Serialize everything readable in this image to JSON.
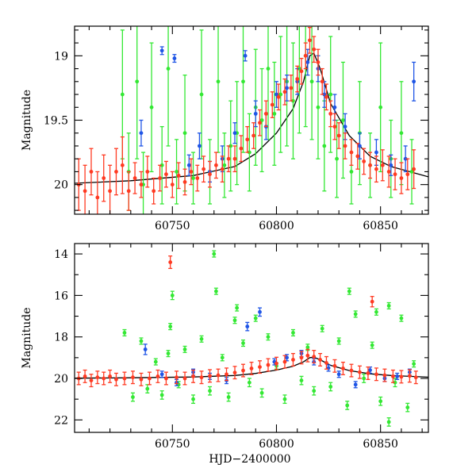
{
  "figure": {
    "xlabel": "HJD−2400000",
    "colors": {
      "red": "#ff3a22",
      "green": "#33e833",
      "blue": "#1f55e6",
      "model": "#000000"
    }
  },
  "chart_data": [
    {
      "type": "scatter",
      "panel": "top",
      "ylabel": "Magnitude",
      "xlim": [
        60703,
        60873
      ],
      "ylim": [
        20.23,
        18.77
      ],
      "y_inverted": true,
      "x_ticks": [
        60750,
        60800,
        60850
      ],
      "y_ticks": [
        19,
        19.5,
        20
      ],
      "y_tick_labels": [
        "19",
        "19.5",
        "20"
      ],
      "model_curve": {
        "x": [
          60703,
          60730,
          60760,
          60780,
          60790,
          60800,
          60808,
          60813,
          60816,
          60818,
          60821,
          60826,
          60835,
          60845,
          60855,
          60873
        ],
        "y": [
          19.99,
          19.97,
          19.93,
          19.86,
          19.76,
          19.6,
          19.41,
          19.2,
          19.0,
          18.98,
          19.1,
          19.37,
          19.62,
          19.78,
          19.86,
          19.94
        ]
      },
      "series": [
        {
          "color": "green",
          "x": [
            60726,
            60729,
            60733,
            60736,
            60740,
            60745,
            60748,
            60752,
            60756,
            60760,
            60764,
            60768,
            60772,
            60775,
            60778,
            60781,
            60784,
            60787,
            60790,
            60793,
            60796,
            60799,
            60802,
            60805,
            60808,
            60811,
            60814,
            60817,
            60820,
            60823,
            60826,
            60829,
            60832,
            60836,
            60840,
            60845,
            60850,
            60855,
            60860,
            60865
          ],
          "y": [
            19.3,
            19.9,
            19.2,
            20.0,
            19.4,
            19.85,
            19.1,
            19.9,
            19.6,
            19.95,
            19.3,
            19.9,
            19.2,
            19.85,
            19.7,
            19.6,
            19.2,
            19.75,
            19.4,
            19.5,
            19.1,
            19.45,
            19.3,
            19.2,
            19.35,
            19.1,
            19.0,
            19.2,
            19.4,
            19.7,
            19.3,
            19.8,
            19.5,
            19.9,
            19.6,
            19.85,
            19.4,
            19.8,
            19.6,
            19.9
          ],
          "yerr": [
            0.5,
            0.3,
            0.6,
            0.25,
            0.5,
            0.3,
            0.6,
            0.25,
            0.45,
            0.2,
            0.5,
            0.25,
            0.55,
            0.25,
            0.35,
            0.4,
            0.55,
            0.3,
            0.45,
            0.4,
            0.55,
            0.4,
            0.45,
            0.5,
            0.45,
            0.5,
            0.55,
            0.45,
            0.4,
            0.35,
            0.45,
            0.3,
            0.45,
            0.25,
            0.4,
            0.25,
            0.5,
            0.3,
            0.4,
            0.25
          ]
        },
        {
          "color": "blue",
          "x": [
            60735,
            60745,
            60751,
            60758,
            60763,
            60768,
            60774,
            60780,
            60785,
            60790,
            60795,
            60800,
            60805,
            60810,
            60815,
            60820,
            60823,
            60828,
            60833,
            60840,
            60848,
            60855,
            60862,
            60866
          ],
          "y": [
            19.6,
            18.96,
            19.02,
            19.85,
            19.7,
            19.9,
            19.8,
            19.6,
            19.0,
            19.45,
            19.55,
            19.3,
            19.25,
            19.2,
            19.05,
            19.1,
            19.3,
            19.4,
            19.55,
            19.7,
            19.75,
            19.85,
            19.8,
            19.2
          ],
          "yerr": [
            0.1,
            0.03,
            0.03,
            0.08,
            0.1,
            0.08,
            0.1,
            0.08,
            0.04,
            0.1,
            0.1,
            0.1,
            0.1,
            0.1,
            0.1,
            0.1,
            0.1,
            0.1,
            0.1,
            0.1,
            0.1,
            0.08,
            0.1,
            0.15
          ]
        },
        {
          "color": "red",
          "x": [
            60705,
            60708,
            60711,
            60714,
            60717,
            60720,
            60723,
            60726,
            60729,
            60732,
            60735,
            60738,
            60741,
            60744,
            60747,
            60750,
            60753,
            60756,
            60759,
            60762,
            60765,
            60768,
            60771,
            60774,
            60777,
            60780,
            60783,
            60786,
            60789,
            60792,
            60795,
            60798,
            60801,
            60804,
            60807,
            60810,
            60812,
            60814,
            60816,
            60818,
            60820,
            60822,
            60824,
            60826,
            60828,
            60830,
            60833,
            60836,
            60839,
            60842,
            60845,
            60848,
            60851,
            60854,
            60857,
            60860,
            60863,
            60866
          ],
          "y": [
            20.0,
            20.05,
            19.9,
            20.1,
            19.95,
            20.05,
            19.9,
            19.85,
            20.05,
            19.95,
            20.0,
            19.9,
            20.05,
            19.95,
            19.92,
            20.0,
            19.93,
            19.98,
            19.9,
            19.95,
            19.88,
            19.92,
            19.85,
            19.88,
            19.8,
            19.8,
            19.72,
            19.65,
            19.62,
            19.52,
            19.45,
            19.38,
            19.32,
            19.28,
            19.25,
            19.18,
            19.12,
            19.0,
            18.88,
            18.95,
            19.05,
            19.2,
            19.32,
            19.45,
            19.55,
            19.62,
            19.7,
            19.75,
            19.78,
            19.82,
            19.85,
            19.88,
            19.85,
            19.9,
            19.92,
            19.95,
            19.92,
            19.88
          ],
          "yerr": [
            0.2,
            0.2,
            0.18,
            0.2,
            0.18,
            0.2,
            0.18,
            0.22,
            0.15,
            0.12,
            0.1,
            0.12,
            0.1,
            0.1,
            0.1,
            0.1,
            0.1,
            0.1,
            0.1,
            0.1,
            0.1,
            0.1,
            0.1,
            0.1,
            0.1,
            0.1,
            0.1,
            0.1,
            0.1,
            0.1,
            0.1,
            0.1,
            0.1,
            0.1,
            0.1,
            0.1,
            0.1,
            0.1,
            0.1,
            0.1,
            0.1,
            0.1,
            0.1,
            0.1,
            0.1,
            0.1,
            0.1,
            0.1,
            0.1,
            0.1,
            0.1,
            0.1,
            0.12,
            0.12,
            0.12,
            0.12,
            0.12,
            0.15
          ]
        }
      ]
    },
    {
      "type": "scatter",
      "panel": "bottom",
      "ylabel": "Magnitude",
      "xlabel": "HJD−2400000",
      "xlim": [
        60703,
        60873
      ],
      "ylim": [
        22.6,
        13.5
      ],
      "y_inverted": true,
      "x_ticks": [
        60750,
        60800,
        60850
      ],
      "y_ticks": [
        14,
        16,
        18,
        20,
        22
      ],
      "y_tick_labels": [
        "14",
        "16",
        "18",
        "20",
        "22"
      ],
      "model_curve": {
        "x": [
          60703,
          60730,
          60760,
          60780,
          60790,
          60800,
          60808,
          60813,
          60816,
          60818,
          60821,
          60826,
          60835,
          60845,
          60855,
          60873
        ],
        "y": [
          19.99,
          19.97,
          19.93,
          19.86,
          19.76,
          19.6,
          19.41,
          19.2,
          19.0,
          18.98,
          19.1,
          19.37,
          19.62,
          19.78,
          19.86,
          19.94
        ]
      },
      "series": [
        {
          "color": "green",
          "x": [
            60727,
            60731,
            60735,
            60738,
            60742,
            60745,
            60749,
            60750,
            60753,
            60756,
            60760,
            60764,
            60768,
            60771,
            60774,
            60777,
            60781,
            60784,
            60787,
            60790,
            60793,
            60796,
            60800,
            60804,
            60808,
            60812,
            60815,
            60818,
            60822,
            60826,
            60830,
            60834,
            60838,
            60842,
            60846,
            60850,
            60854,
            60857,
            60860,
            60863,
            60866,
            60748,
            60770,
            60780,
            60835,
            60848,
            60854
          ],
          "y": [
            17.8,
            20.9,
            18.2,
            20.5,
            19.2,
            20.8,
            17.5,
            16.0,
            20.3,
            18.6,
            21.0,
            18.1,
            20.6,
            15.8,
            19.0,
            20.9,
            16.6,
            18.3,
            20.2,
            17.1,
            20.7,
            18.0,
            19.4,
            21.0,
            17.8,
            20.1,
            18.5,
            20.6,
            17.6,
            20.4,
            18.2,
            21.3,
            16.9,
            20.0,
            18.4,
            21.1,
            16.5,
            20.2,
            17.1,
            21.4,
            19.3,
            18.8,
            14.0,
            17.2,
            15.8,
            16.8,
            22.1
          ],
          "yerr": [
            0.15,
            0.2,
            0.15,
            0.2,
            0.15,
            0.2,
            0.15,
            0.2,
            0.15,
            0.15,
            0.2,
            0.15,
            0.2,
            0.15,
            0.15,
            0.2,
            0.15,
            0.15,
            0.2,
            0.15,
            0.2,
            0.15,
            0.15,
            0.2,
            0.15,
            0.2,
            0.15,
            0.2,
            0.15,
            0.2,
            0.15,
            0.2,
            0.15,
            0.2,
            0.15,
            0.2,
            0.15,
            0.2,
            0.15,
            0.2,
            0.15,
            0.15,
            0.15,
            0.15,
            0.15,
            0.15,
            0.2
          ]
        },
        {
          "color": "blue",
          "x": [
            60737,
            60745,
            60752,
            60760,
            60768,
            60776,
            60786,
            60792,
            60799,
            60805,
            60812,
            60818,
            60825,
            60830,
            60838,
            60845,
            60852,
            60858,
            60864
          ],
          "y": [
            18.6,
            19.8,
            20.2,
            19.7,
            19.9,
            20.1,
            17.5,
            16.8,
            19.2,
            19.0,
            18.8,
            19.2,
            19.5,
            19.8,
            20.3,
            19.6,
            20.0,
            19.9,
            19.7
          ],
          "yerr": [
            0.25,
            0.15,
            0.15,
            0.15,
            0.15,
            0.15,
            0.2,
            0.2,
            0.15,
            0.15,
            0.15,
            0.15,
            0.15,
            0.15,
            0.15,
            0.15,
            0.15,
            0.15,
            0.15
          ]
        },
        {
          "color": "red",
          "x": [
            60705,
            60708,
            60711,
            60714,
            60717,
            60720,
            60723,
            60727,
            60731,
            60735,
            60739,
            60743,
            60747,
            60749,
            60752,
            60756,
            60760,
            60764,
            60768,
            60772,
            60776,
            60780,
            60784,
            60788,
            60792,
            60796,
            60800,
            60804,
            60808,
            60812,
            60815,
            60818,
            60821,
            60824,
            60828,
            60832,
            60836,
            60840,
            60844,
            60846,
            60848,
            60852,
            60856,
            60860,
            60864,
            60867
          ],
          "y": [
            20.0,
            19.9,
            20.1,
            19.95,
            20.0,
            19.9,
            20.05,
            20.0,
            19.95,
            20.05,
            20.0,
            19.9,
            20.0,
            14.4,
            19.95,
            20.0,
            19.9,
            19.95,
            19.88,
            19.85,
            19.8,
            19.72,
            19.62,
            19.52,
            19.45,
            19.35,
            19.28,
            19.2,
            19.1,
            19.0,
            18.9,
            18.95,
            19.1,
            19.25,
            19.4,
            19.52,
            19.62,
            19.7,
            19.75,
            16.3,
            19.8,
            19.85,
            19.9,
            19.92,
            19.88,
            19.95
          ],
          "yerr": [
            0.3,
            0.3,
            0.3,
            0.3,
            0.3,
            0.3,
            0.3,
            0.3,
            0.3,
            0.3,
            0.3,
            0.3,
            0.3,
            0.3,
            0.3,
            0.3,
            0.3,
            0.3,
            0.3,
            0.3,
            0.3,
            0.3,
            0.3,
            0.3,
            0.3,
            0.3,
            0.3,
            0.3,
            0.3,
            0.3,
            0.3,
            0.3,
            0.3,
            0.3,
            0.3,
            0.3,
            0.3,
            0.3,
            0.3,
            0.25,
            0.3,
            0.3,
            0.3,
            0.3,
            0.3,
            0.3
          ]
        }
      ]
    }
  ]
}
